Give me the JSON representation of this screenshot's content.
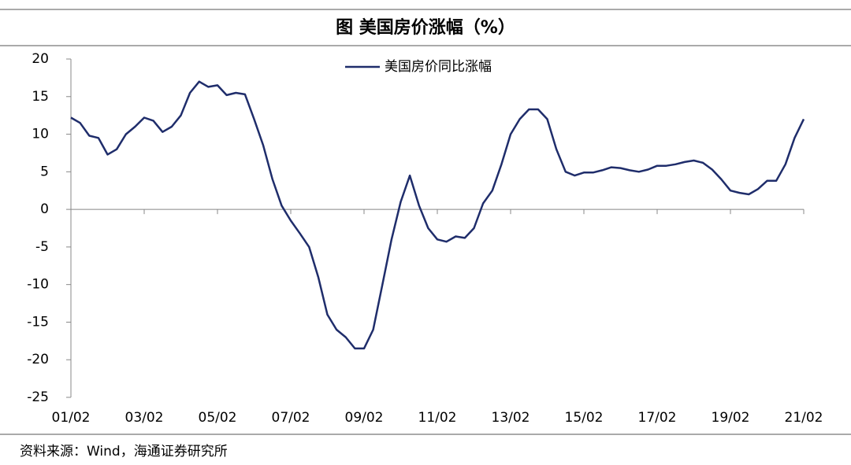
{
  "chart_data": {
    "type": "line",
    "title": "图 美国房价涨幅（%）",
    "source": "资料来源：Wind，海通证券研究所",
    "categories": [
      "01/02",
      null,
      null,
      null,
      null,
      null,
      null,
      null,
      "03/02",
      null,
      null,
      null,
      null,
      null,
      null,
      null,
      "05/02",
      null,
      null,
      null,
      null,
      null,
      null,
      null,
      "07/02",
      null,
      null,
      null,
      null,
      null,
      null,
      null,
      "09/02",
      null,
      null,
      null,
      null,
      null,
      null,
      null,
      "11/02",
      null,
      null,
      null,
      null,
      null,
      null,
      null,
      "13/02",
      null,
      null,
      null,
      null,
      null,
      null,
      null,
      "15/02",
      null,
      null,
      null,
      null,
      null,
      null,
      null,
      "17/02",
      null,
      null,
      null,
      null,
      null,
      null,
      null,
      "19/02",
      null,
      null,
      null,
      null,
      null,
      null,
      null,
      "21/02"
    ],
    "series": [
      {
        "name": "美国房价同比涨幅",
        "color": "#1f2d6b",
        "values": [
          12.2,
          11.5,
          9.8,
          9.5,
          7.3,
          8.0,
          10.0,
          11.0,
          12.2,
          11.8,
          10.3,
          11.0,
          12.5,
          15.5,
          17.0,
          16.3,
          16.5,
          15.2,
          15.5,
          15.3,
          12.0,
          8.5,
          4.0,
          0.5,
          -1.5,
          -3.2,
          -5.0,
          -9.0,
          -14.0,
          -16.0,
          -17.0,
          -18.5,
          -18.5,
          -16.0,
          -10.0,
          -4.0,
          1.0,
          4.5,
          0.5,
          -2.5,
          -4.0,
          -4.3,
          -3.6,
          -3.8,
          -2.5,
          0.8,
          2.5,
          6.0,
          10.0,
          12.0,
          13.3,
          13.3,
          12.0,
          8.0,
          5.0,
          4.5,
          4.9,
          4.9,
          5.2,
          5.6,
          5.5,
          5.2,
          5.0,
          5.3,
          5.8,
          5.8,
          6.0,
          6.3,
          6.5,
          6.2,
          5.3,
          4.0,
          2.5,
          2.2,
          2.0,
          2.7,
          3.8,
          3.8,
          6.0,
          9.5,
          12.0
        ]
      }
    ],
    "ylim": [
      -25,
      20
    ],
    "yticks": [
      -25,
      -20,
      -15,
      -10,
      -5,
      0,
      5,
      10,
      15,
      20
    ],
    "legend": "top"
  }
}
